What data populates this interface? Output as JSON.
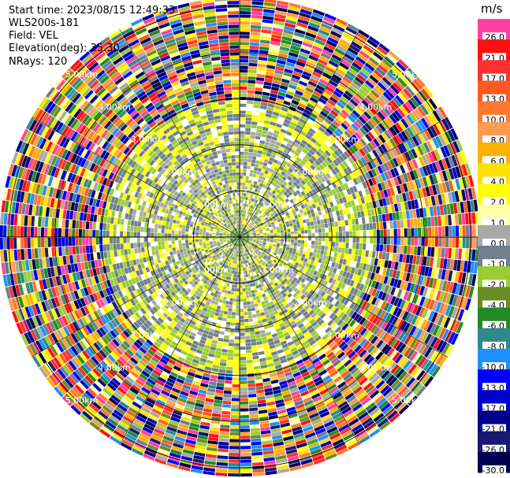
{
  "header": {
    "start_time": "Start time: 2023/08/15 12:49:33",
    "instrument": "WLS200s-181",
    "field": "Field: VEL",
    "elevation": "Elevation(deg): 35.30",
    "nrays": "NRays: 120"
  },
  "colorbar": {
    "unit": "m/s",
    "levels": [
      {
        "label": "26.0",
        "color": "#ff3fa4"
      },
      {
        "label": "21.0",
        "color": "#ff1010"
      },
      {
        "label": "17.0",
        "color": "#ff3030"
      },
      {
        "label": "13.0",
        "color": "#ff5a1f"
      },
      {
        "label": "10.0",
        "color": "#ff7a30"
      },
      {
        "label": "8.0",
        "color": "#ff9a50"
      },
      {
        "label": "6.0",
        "color": "#ffb000"
      },
      {
        "label": "4.0",
        "color": "#ffe000"
      },
      {
        "label": "2.0",
        "color": "#ffff00"
      },
      {
        "label": "1.0",
        "color": "#ffffa8"
      },
      {
        "label": "0.0",
        "color": "#a8a8a8"
      },
      {
        "label": "-1.0",
        "color": "#6f7f8f"
      },
      {
        "label": "-2.0",
        "color": "#9acd32"
      },
      {
        "label": "-4.0",
        "color": "#6b8e23"
      },
      {
        "label": "-6.0",
        "color": "#228b22"
      },
      {
        "label": "-8.0",
        "color": "#2e8b8b"
      },
      {
        "label": "-10.0",
        "color": "#1e90ff"
      },
      {
        "label": "-13.0",
        "color": "#0000ff"
      },
      {
        "label": "-17.0",
        "color": "#0000cd"
      },
      {
        "label": "-21.0",
        "color": "#00008b"
      },
      {
        "label": "-26.0",
        "color": "#191970"
      },
      {
        "label": "-30.0",
        "color": "#000050"
      }
    ]
  },
  "chart_data": {
    "type": "heatmap",
    "projection": "polar-ppi",
    "field": "VEL",
    "unit": "m/s",
    "n_rays": 120,
    "elevation_deg": 35.3,
    "range_rings_km": [
      1.0,
      2.0,
      3.0,
      4.0,
      5.0
    ],
    "ring_labels": [
      "1.00km",
      "2.00km",
      "3.00km",
      "4.00km",
      "5.00km"
    ],
    "max_range_km": 5.2,
    "zones": [
      {
        "from_km": 0.0,
        "to_km": 0.25,
        "dominant_values": [
          -4.0,
          -6.0
        ]
      },
      {
        "from_km": 0.25,
        "to_km": 2.4,
        "dominant_values": [
          -1.0,
          0.0,
          -2.0,
          2.0
        ]
      },
      {
        "from_km": 2.4,
        "to_km": 3.0,
        "dominant_values": [
          2.0,
          -2.0,
          -1.0
        ]
      },
      {
        "from_km": 3.0,
        "to_km": 5.2,
        "dominant_values": "mixed / noise (all colors)"
      }
    ]
  }
}
